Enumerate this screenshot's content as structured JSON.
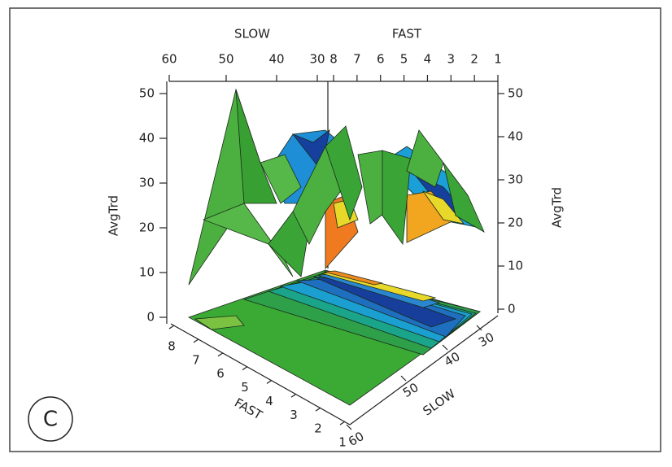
{
  "panel_label": "C",
  "top_axis": {
    "slow_label": "SLOW",
    "fast_label": "FAST",
    "slow_ticks": [
      60,
      50,
      40,
      30
    ],
    "fast_ticks": [
      8,
      7,
      6,
      5,
      4,
      3,
      2,
      1
    ]
  },
  "left_axis": {
    "label": "AvgTrd",
    "ticks": [
      0,
      10,
      20,
      30,
      40,
      50
    ]
  },
  "right_axis": {
    "label": "AvgTrd",
    "ticks": [
      0,
      10,
      20,
      30,
      40,
      50
    ]
  },
  "floor_axes": {
    "fast_label": "FAST",
    "fast_ticks": [
      8,
      7,
      6,
      5,
      4,
      3,
      2,
      1
    ],
    "slow_label": "SLOW",
    "slow_ticks": [
      60,
      50,
      40,
      30
    ]
  }
}
